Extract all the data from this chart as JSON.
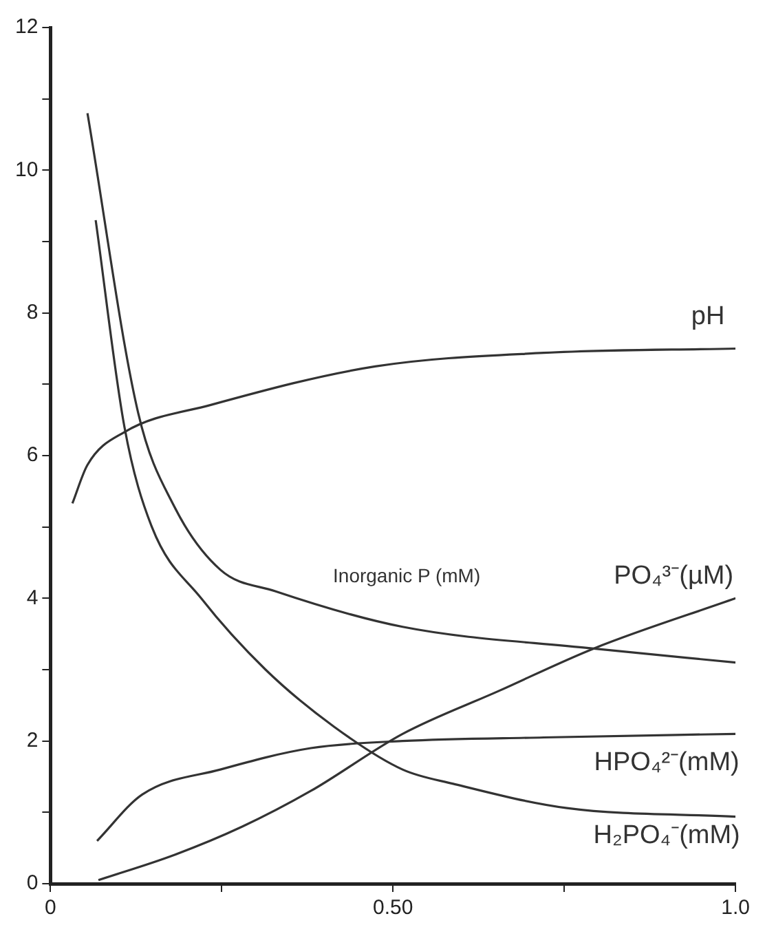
{
  "chart_data": {
    "type": "line",
    "xlim": [
      0,
      1
    ],
    "xticks": [
      0,
      {
        "value": 0.25,
        "label": null
      },
      {
        "value": 0.5,
        "label": "0.50"
      },
      {
        "value": 0.75,
        "label": null
      },
      {
        "value": 1,
        "label": "1.0"
      }
    ],
    "ylim": [
      0,
      12
    ],
    "yticks": [
      0,
      {
        "value": 1,
        "label": null
      },
      2,
      {
        "value": 3,
        "label": null
      },
      4,
      {
        "value": 5,
        "label": null
      },
      6,
      {
        "value": 7,
        "label": null
      },
      8,
      {
        "value": 9,
        "label": null
      },
      10,
      {
        "value": 11,
        "label": null
      },
      12
    ],
    "grid": false,
    "legend": false,
    "marker": "none",
    "line_style": "solid",
    "series": [
      {
        "name": "pH",
        "color": "#333333",
        "x": [
          0.032,
          0.054,
          0.108,
          0.234,
          0.474,
          0.72,
          1.0
        ],
        "values": [
          5.33,
          5.87,
          6.33,
          6.71,
          7.25,
          7.44,
          7.5
        ]
      },
      {
        "name": "Inorganic P (mM)",
        "color": "#333333",
        "x": [
          0.054,
          0.128,
          0.18,
          0.248,
          0.328,
          0.514,
          0.788,
          1.0
        ],
        "values": [
          10.8,
          6.6,
          5.3,
          4.4,
          4.1,
          3.6,
          3.3,
          3.1
        ]
      },
      {
        "name": "PO₄³⁻(µM)",
        "color": "#333333",
        "x": [
          0.07,
          0.18,
          0.28,
          0.38,
          0.514,
          0.654,
          0.794,
          1.0
        ],
        "values": [
          0.05,
          0.4,
          0.8,
          1.3,
          2.1,
          2.7,
          3.3,
          4.0
        ]
      },
      {
        "name": "HPO₄²⁻(mM)",
        "color": "#333333",
        "x": [
          0.068,
          0.134,
          0.248,
          0.38,
          0.514,
          0.72,
          1.0
        ],
        "values": [
          0.6,
          1.25,
          1.6,
          1.9,
          2.0,
          2.05,
          2.1
        ]
      },
      {
        "name": "H₂PO₄⁻(mM)",
        "color": "#333333",
        "x": [
          0.066,
          0.108,
          0.148,
          0.22,
          0.314,
          0.414,
          0.514,
          0.588,
          0.754,
          1.0
        ],
        "values": [
          9.3,
          6.4,
          5.0,
          4.0,
          3.0,
          2.2,
          1.6,
          1.4,
          1.06,
          0.94
        ]
      }
    ]
  }
}
